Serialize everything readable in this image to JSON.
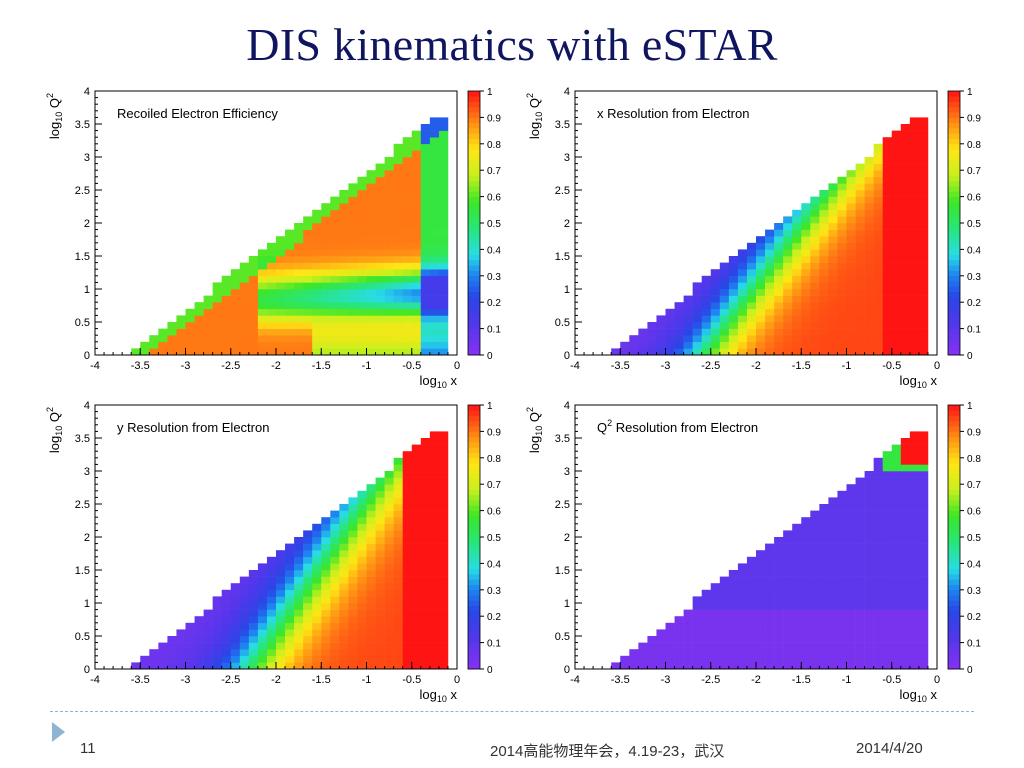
{
  "slide": {
    "title": "DIS kinematics with eSTAR",
    "page_number": "11",
    "footer_text": "2014高能物理年会，4.19-23，武汉",
    "date": "2014/4/20"
  },
  "colors": {
    "title": "#10155f",
    "footer_line": "#8fb4d6"
  },
  "chart_data": [
    {
      "type": "heatmap",
      "title": "Recoiled Electron Efficiency",
      "xlabel": "log10 x",
      "ylabel": "log10 Q2",
      "xlim": [
        -4,
        0
      ],
      "ylim": [
        0,
        4
      ],
      "x_ticks": [
        "-4",
        "-3.5",
        "-3",
        "-2.5",
        "-2",
        "-1.5",
        "-1",
        "-0.5",
        "0"
      ],
      "y_ticks": [
        "0",
        "0.5",
        "1",
        "1.5",
        "2",
        "2.5",
        "3",
        "3.5",
        "4"
      ],
      "colorbar": {
        "min": 0,
        "max": 1,
        "ticks": [
          "0",
          "0.1",
          "0.2",
          "0.3",
          "0.4",
          "0.5",
          "0.6",
          "0.7",
          "0.8",
          "0.9",
          "1"
        ]
      },
      "value_pattern": "efficiency 0.8–0.9 over most of the kinematic region; drops to 0.3–0.6 in a band around log10 Q2 ≈ 0.8–1.2 for log10 x > -2, and near the edges"
    },
    {
      "type": "heatmap",
      "title": "x Resolution from Electron",
      "xlabel": "log10 x",
      "ylabel": "log10 Q2",
      "xlim": [
        -4,
        0
      ],
      "ylim": [
        0,
        4
      ],
      "x_ticks": [
        "-4",
        "-3.5",
        "-3",
        "-2.5",
        "-2",
        "-1.5",
        "-1",
        "-0.5",
        "0"
      ],
      "y_ticks": [
        "0",
        "0.5",
        "1",
        "1.5",
        "2",
        "2.5",
        "3",
        "3.5",
        "4"
      ],
      "colorbar": {
        "min": 0,
        "max": 1,
        "ticks": [
          "0",
          "0.1",
          "0.2",
          "0.3",
          "0.4",
          "0.5",
          "0.6",
          "0.7",
          "0.8",
          "0.9",
          "1"
        ]
      },
      "value_pattern": "resolution ~0.05 at small x; rises through 0.2–0.6 along a diagonal band and exceeds 1 at large x"
    },
    {
      "type": "heatmap",
      "title": "y Resolution from Electron",
      "xlabel": "log10 x",
      "ylabel": "log10 Q2",
      "xlim": [
        -4,
        0
      ],
      "ylim": [
        0,
        4
      ],
      "x_ticks": [
        "-4",
        "-3.5",
        "-3",
        "-2.5",
        "-2",
        "-1.5",
        "-1",
        "-0.5",
        "0"
      ],
      "y_ticks": [
        "0",
        "0.5",
        "1",
        "1.5",
        "2",
        "2.5",
        "3",
        "3.5",
        "4"
      ],
      "colorbar": {
        "min": 0,
        "max": 1,
        "ticks": [
          "0",
          "0.1",
          "0.2",
          "0.3",
          "0.4",
          "0.5",
          "0.6",
          "0.7",
          "0.8",
          "0.9",
          "1"
        ]
      },
      "value_pattern": "resolution ~0.05 at small x; rises through 0.2–0.6 along a diagonal band and exceeds 1 at large x"
    },
    {
      "type": "heatmap",
      "title": "Q2 Resolution from Electron",
      "xlabel": "log10 x",
      "ylabel": "log10 Q2",
      "xlim": [
        -4,
        0
      ],
      "ylim": [
        0,
        4
      ],
      "x_ticks": [
        "-4",
        "-3.5",
        "-3",
        "-2.5",
        "-2",
        "-1.5",
        "-1",
        "-0.5",
        "0"
      ],
      "y_ticks": [
        "0",
        "0.5",
        "1",
        "1.5",
        "2",
        "2.5",
        "3",
        "3.5",
        "4"
      ],
      "colorbar": {
        "min": 0,
        "max": 1,
        "ticks": [
          "0",
          "0.1",
          "0.2",
          "0.3",
          "0.4",
          "0.5",
          "0.6",
          "0.7",
          "0.8",
          "0.9",
          "1"
        ]
      },
      "value_pattern": "resolution ~0.02 in the lower region, ~0.05–0.1 above log10 Q2 ≈ 0.9; rises above 0.5 only in the top-right corner cells"
    }
  ]
}
